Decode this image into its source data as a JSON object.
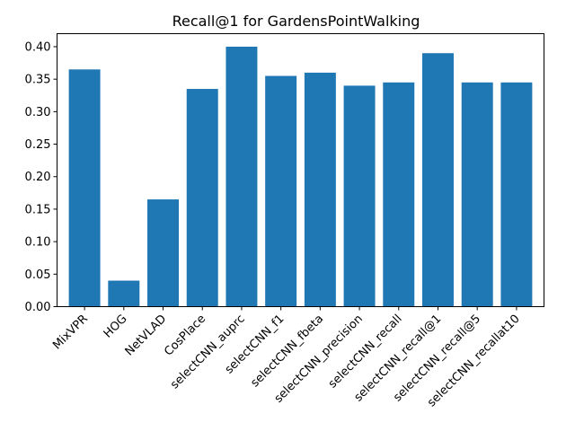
{
  "chart_data": {
    "type": "bar",
    "title": "Recall@1 for GardensPointWalking",
    "xlabel": "",
    "ylabel": "",
    "categories": [
      "MixVPR",
      "HOG",
      "NetVLAD",
      "CosPlace",
      "selectCNN_auprc",
      "selectCNN_f1",
      "selectCNN_fbeta",
      "selectCNN_precision",
      "selectCNN_recall",
      "selectCNN_recall@1",
      "selectCNN_recall@5",
      "selectCNN_recallat10"
    ],
    "values": [
      0.365,
      0.04,
      0.165,
      0.335,
      0.4,
      0.355,
      0.36,
      0.34,
      0.345,
      0.39,
      0.345,
      0.345
    ],
    "ylim": [
      0,
      0.42
    ],
    "yticks": [
      "0.00",
      "0.05",
      "0.10",
      "0.15",
      "0.20",
      "0.25",
      "0.30",
      "0.35",
      "0.40"
    ],
    "bar_color": "#1f77b4",
    "grid": false,
    "xtick_rotation": 45
  }
}
